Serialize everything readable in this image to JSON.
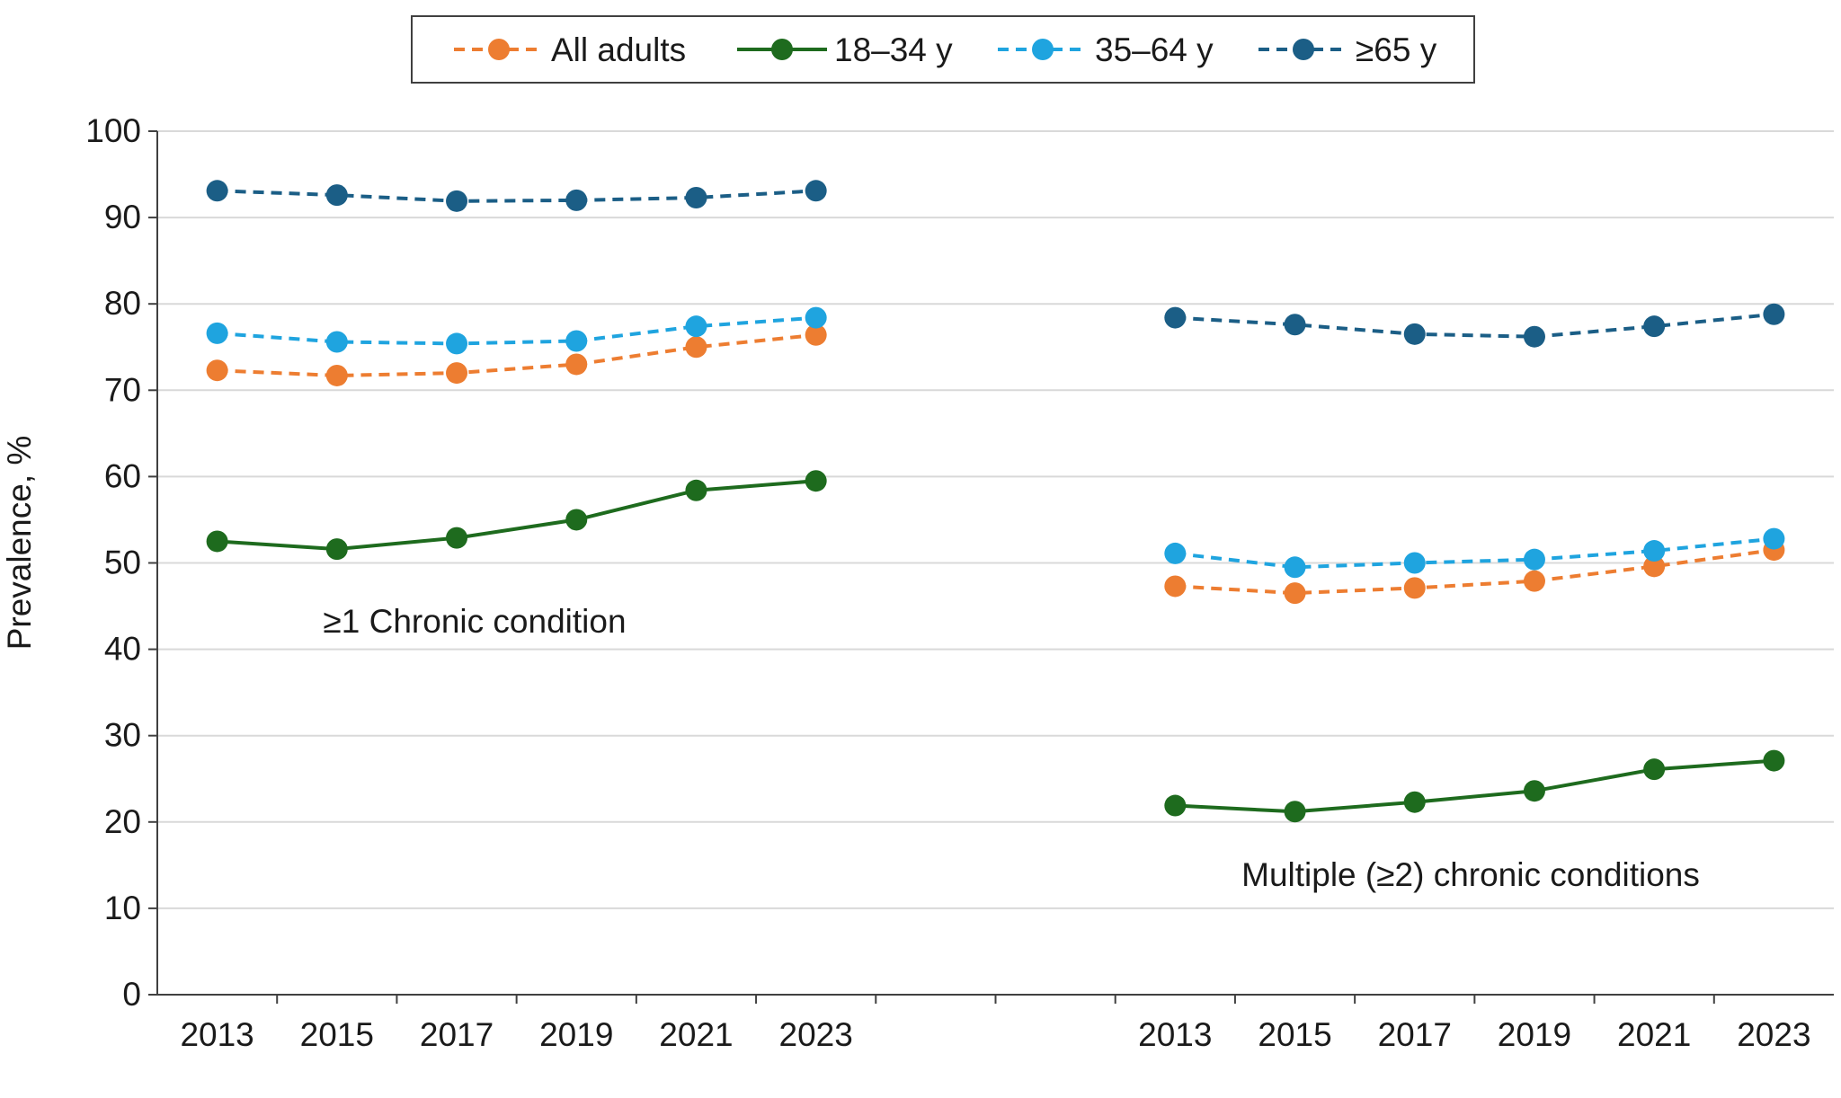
{
  "chart_data": {
    "type": "line",
    "ylabel": "Prevalence, %",
    "ylim": [
      0,
      100
    ],
    "yticks": [
      "0",
      "10",
      "20",
      "30",
      "40",
      "50",
      "60",
      "70",
      "80",
      "90",
      "100"
    ],
    "grid": "horizontal",
    "legend_position": "top-center",
    "categories": [
      "2013",
      "2015",
      "2017",
      "2019",
      "2021",
      "2023",
      "",
      "",
      "2013",
      "2015",
      "2017",
      "2019",
      "2021",
      "2023"
    ],
    "panels": [
      {
        "label": "≥1 Chronic condition",
        "category_indices": [
          0,
          1,
          2,
          3,
          4,
          5
        ]
      },
      {
        "label": "Multiple (≥2) chronic conditions",
        "category_indices": [
          8,
          9,
          10,
          11,
          12,
          13
        ]
      }
    ],
    "series": [
      {
        "name": "All adults",
        "color": "#ED7D31",
        "line_style": "dashed",
        "panel_values": [
          [
            72.3,
            71.7,
            72.0,
            73.0,
            75.0,
            76.4
          ],
          [
            47.3,
            46.5,
            47.1,
            47.9,
            49.6,
            51.5
          ]
        ]
      },
      {
        "name": "18–34 y",
        "color": "#1E6B1E",
        "line_style": "solid",
        "panel_values": [
          [
            52.5,
            51.6,
            52.9,
            55.0,
            58.4,
            59.5
          ],
          [
            21.9,
            21.2,
            22.3,
            23.6,
            26.1,
            27.1
          ]
        ]
      },
      {
        "name": "35–64 y",
        "color": "#1FA4DF",
        "line_style": "dashed",
        "panel_values": [
          [
            76.6,
            75.6,
            75.4,
            75.7,
            77.4,
            78.4
          ],
          [
            51.1,
            49.5,
            50.0,
            50.4,
            51.4,
            52.8
          ]
        ]
      },
      {
        "name": "≥65 y",
        "color": "#1B5E86",
        "line_style": "dashed",
        "panel_values": [
          [
            93.1,
            92.6,
            91.9,
            92.0,
            92.3,
            93.1
          ],
          [
            78.4,
            77.6,
            76.5,
            76.2,
            77.4,
            78.8
          ]
        ]
      }
    ]
  }
}
